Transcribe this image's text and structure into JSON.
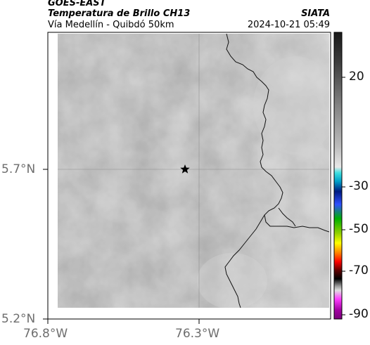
{
  "header": {
    "satellite": "GOES-EAST",
    "product": "Temperatura de Brillo CH13",
    "region": "Vía Medellín - Quibdó 50km",
    "institution": "SIATA",
    "datetime": "2024-10-21 05:49"
  },
  "axes": {
    "lat_labels": [
      {
        "text": "5.7°N",
        "value": 5.7
      },
      {
        "text": "5.2°N",
        "value": 5.2
      }
    ],
    "lon_labels": [
      {
        "text": "76.8°W",
        "value": -76.8
      },
      {
        "text": "76.3°W",
        "value": -76.3
      }
    ]
  },
  "colorbar": {
    "ticks": [
      {
        "text": "20",
        "value": 20
      },
      {
        "text": "-30",
        "value": -30
      },
      {
        "text": "-50",
        "value": -50
      },
      {
        "text": "-70",
        "value": -70
      },
      {
        "text": "-90",
        "value": -90
      }
    ]
  },
  "marker": {
    "name": "star",
    "lat": 5.7,
    "lon": -76.35
  },
  "colors": {
    "cloud_gray": "#9a9a9a",
    "border_line": "#111111",
    "grid": "#7a7a7a"
  }
}
